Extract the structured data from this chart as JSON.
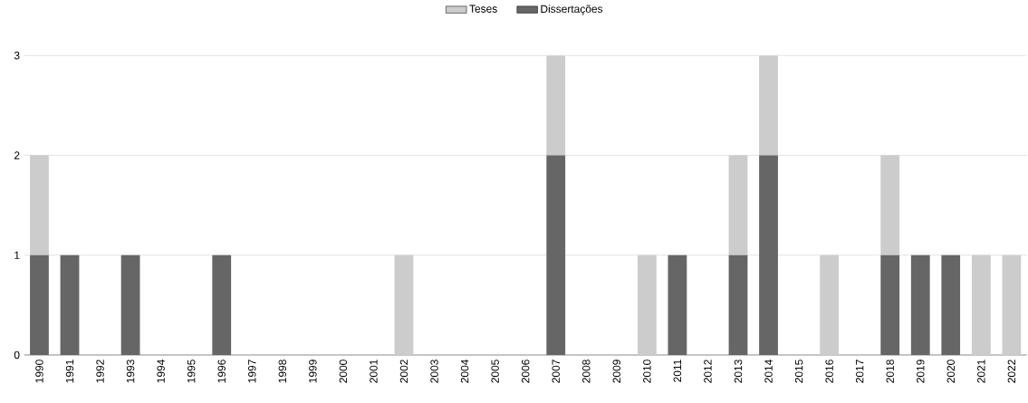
{
  "chart_data": {
    "type": "bar",
    "stacked": true,
    "categories": [
      "1990",
      "1991",
      "1992",
      "1993",
      "1994",
      "1995",
      "1996",
      "1997",
      "1998",
      "1999",
      "2000",
      "2001",
      "2002",
      "2003",
      "2004",
      "2005",
      "2006",
      "2007",
      "2008",
      "2009",
      "2010",
      "2011",
      "2012",
      "2013",
      "2014",
      "2015",
      "2016",
      "2017",
      "2018",
      "2019",
      "2020",
      "2021",
      "2022"
    ],
    "series": [
      {
        "name": "Dissertações",
        "color": "#666666",
        "values": [
          1,
          1,
          0,
          1,
          0,
          0,
          1,
          0,
          0,
          0,
          0,
          0,
          0,
          0,
          0,
          0,
          0,
          2,
          0,
          0,
          0,
          1,
          0,
          1,
          2,
          0,
          0,
          0,
          1,
          1,
          1,
          0,
          0
        ]
      },
      {
        "name": "Teses",
        "color": "#cccccc",
        "values": [
          1,
          0,
          0,
          0,
          0,
          0,
          0,
          0,
          0,
          0,
          0,
          0,
          1,
          0,
          0,
          0,
          0,
          1,
          0,
          0,
          1,
          0,
          0,
          1,
          1,
          0,
          1,
          0,
          1,
          0,
          0,
          1,
          1
        ]
      }
    ],
    "ylim": [
      0,
      3
    ],
    "yticks": [
      0,
      1,
      2,
      3
    ],
    "grid": "y",
    "legend": "top"
  }
}
